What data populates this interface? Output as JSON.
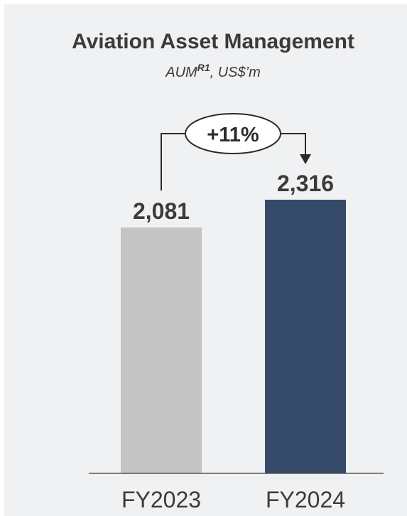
{
  "chart_data": {
    "type": "bar",
    "title": "Aviation Asset Management",
    "subtitle": {
      "text": "AUM",
      "superscript": "R1",
      "suffix": ", US$’m"
    },
    "categories": [
      "FY2023",
      "FY2024"
    ],
    "values": [
      2081,
      2316
    ],
    "value_labels": [
      "2,081",
      "2,316"
    ],
    "colors": [
      "#c4c4c4",
      "#354a69"
    ],
    "growth_label": "+11%",
    "grid": false,
    "legend": "none"
  }
}
